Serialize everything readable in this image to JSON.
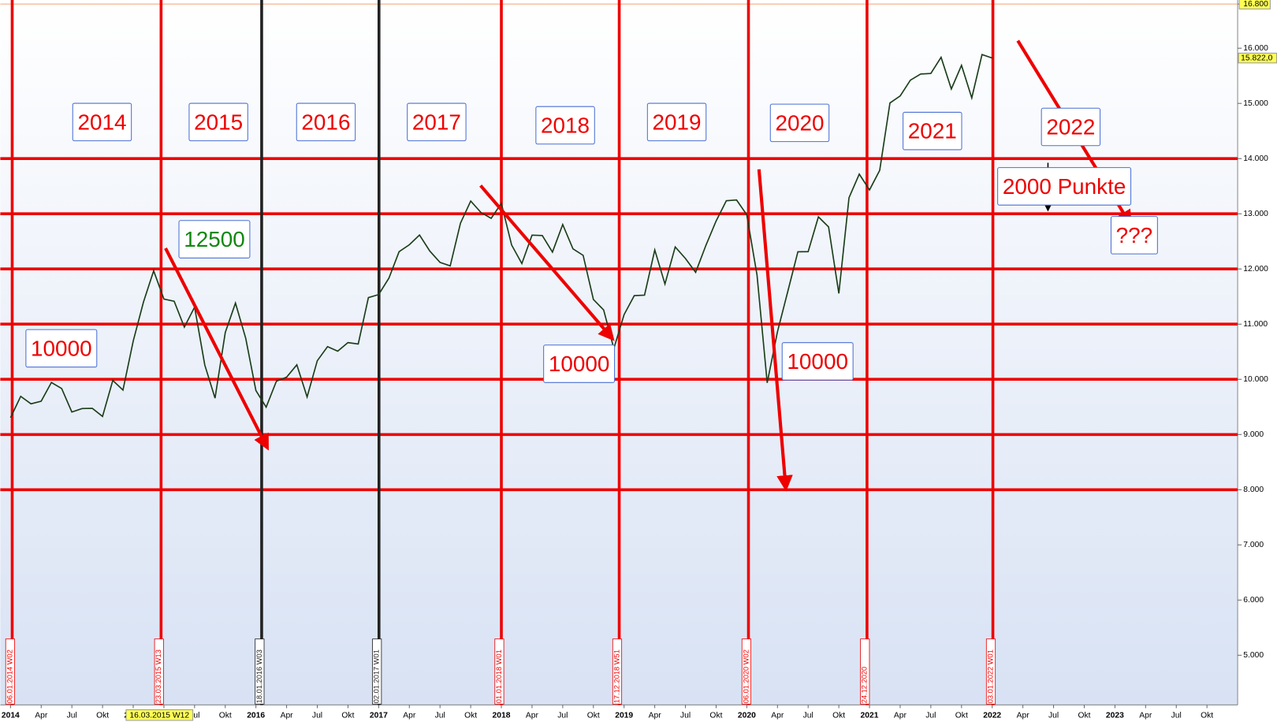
{
  "chart_data": {
    "type": "line",
    "color": "#1a3d1a",
    "x": [
      "2014-01",
      "2014-02",
      "2014-03",
      "2014-04",
      "2014-05",
      "2014-06",
      "2014-07",
      "2014-08",
      "2014-09",
      "2014-10",
      "2014-11",
      "2014-12",
      "2015-01",
      "2015-02",
      "2015-03",
      "2015-04",
      "2015-05",
      "2015-06",
      "2015-07",
      "2015-08",
      "2015-09",
      "2015-10",
      "2015-11",
      "2015-12",
      "2016-01",
      "2016-02",
      "2016-03",
      "2016-04",
      "2016-05",
      "2016-06",
      "2016-07",
      "2016-08",
      "2016-09",
      "2016-10",
      "2016-11",
      "2016-12",
      "2017-01",
      "2017-02",
      "2017-03",
      "2017-04",
      "2017-05",
      "2017-06",
      "2017-07",
      "2017-08",
      "2017-09",
      "2017-10",
      "2017-11",
      "2017-12",
      "2018-01",
      "2018-02",
      "2018-03",
      "2018-04",
      "2018-05",
      "2018-06",
      "2018-07",
      "2018-08",
      "2018-09",
      "2018-10",
      "2018-11",
      "2018-12",
      "2019-01",
      "2019-02",
      "2019-03",
      "2019-04",
      "2019-05",
      "2019-06",
      "2019-07",
      "2019-08",
      "2019-09",
      "2019-10",
      "2019-11",
      "2019-12",
      "2020-01",
      "2020-02",
      "2020-03",
      "2020-04",
      "2020-05",
      "2020-06",
      "2020-07",
      "2020-08",
      "2020-09",
      "2020-10",
      "2020-11",
      "2020-12",
      "2021-01",
      "2021-02",
      "2021-03",
      "2021-04",
      "2021-05",
      "2021-06",
      "2021-07",
      "2021-08",
      "2021-09",
      "2021-10",
      "2021-11",
      "2021-12",
      "2022-01"
    ],
    "values": [
      9306,
      9692,
      9556,
      9603,
      9943,
      9833,
      9407,
      9470,
      9474,
      9327,
      9980,
      9806,
      10694,
      11402,
      11966,
      11454,
      11414,
      10945,
      11309,
      10259,
      9660,
      10850,
      11382,
      10743,
      9798,
      9495,
      9966,
      10039,
      10263,
      9680,
      10337,
      10593,
      10511,
      10665,
      10640,
      11481,
      11535,
      11834,
      12313,
      12438,
      12615,
      12325,
      12118,
      12056,
      12829,
      13230,
      13024,
      12918,
      13189,
      12436,
      12097,
      12612,
      12605,
      12306,
      12806,
      12364,
      12247,
      11447,
      11257,
      10559,
      11173,
      11516,
      11526,
      12344,
      11727,
      12399,
      12189,
      11939,
      12428,
      12867,
      13236,
      13249,
      12982,
      11890,
      9936,
      10862,
      11587,
      12311,
      12313,
      12945,
      12761,
      11556,
      13291,
      13719,
      13433,
      13786,
      15008,
      15136,
      15421,
      15531,
      15544,
      15835,
      15261,
      15689,
      15100,
      15885,
      15822
    ],
    "price_label": "15.822,0",
    "xlim": [
      "2013-12",
      "2024-01"
    ],
    "ylim": [
      4100,
      16800
    ],
    "yticks": [
      {
        "value": 5000,
        "label": "5.000"
      },
      {
        "value": 6000,
        "label": "6.000"
      },
      {
        "value": 7000,
        "label": "7.000"
      },
      {
        "value": 8000,
        "label": "8.000"
      },
      {
        "value": 9000,
        "label": "9.000"
      },
      {
        "value": 10000,
        "label": "10.000"
      },
      {
        "value": 11000,
        "label": "11.000"
      },
      {
        "value": 12000,
        "label": "12.000"
      },
      {
        "value": 13000,
        "label": "13.000"
      },
      {
        "value": 14000,
        "label": "14.000"
      },
      {
        "value": 15000,
        "label": "15.000"
      },
      {
        "value": 16000,
        "label": "16.000"
      },
      {
        "value": 16800,
        "label": "16.800"
      }
    ],
    "xticks": [
      {
        "value": "2014-01",
        "label": "2014"
      },
      {
        "value": "2014-04",
        "label": "Apr"
      },
      {
        "value": "2014-07",
        "label": "Jul"
      },
      {
        "value": "2014-10",
        "label": "Okt"
      },
      {
        "value": "2015-01",
        "label": "2015"
      },
      {
        "value": "2015-04",
        "label": "Apr"
      },
      {
        "value": "2015-07",
        "label": "Jul"
      },
      {
        "value": "2015-10",
        "label": "Okt"
      },
      {
        "value": "2016-01",
        "label": "2016"
      },
      {
        "value": "2016-04",
        "label": "Apr"
      },
      {
        "value": "2016-07",
        "label": "Jul"
      },
      {
        "value": "2016-10",
        "label": "Okt"
      },
      {
        "value": "2017-01",
        "label": "2017"
      },
      {
        "value": "2017-04",
        "label": "Apr"
      },
      {
        "value": "2017-07",
        "label": "Jul"
      },
      {
        "value": "2017-10",
        "label": "Okt"
      },
      {
        "value": "2018-01",
        "label": "2018"
      },
      {
        "value": "2018-04",
        "label": "Apr"
      },
      {
        "value": "2018-07",
        "label": "Jul"
      },
      {
        "value": "2018-10",
        "label": "Okt"
      },
      {
        "value": "2019-01",
        "label": "2019"
      },
      {
        "value": "2019-04",
        "label": "Apr"
      },
      {
        "value": "2019-07",
        "label": "Jul"
      },
      {
        "value": "2019-10",
        "label": "Okt"
      },
      {
        "value": "2020-01",
        "label": "2020"
      },
      {
        "value": "2020-04",
        "label": "Apr"
      },
      {
        "value": "2020-07",
        "label": "Jul"
      },
      {
        "value": "2020-10",
        "label": "Okt"
      },
      {
        "value": "2021-01",
        "label": "2021"
      },
      {
        "value": "2021-04",
        "label": "Apr"
      },
      {
        "value": "2021-07",
        "label": "Jul"
      },
      {
        "value": "2021-10",
        "label": "Okt"
      },
      {
        "value": "2022-01",
        "label": "2022"
      },
      {
        "value": "2022-04",
        "label": "Apr"
      },
      {
        "value": "2022-07",
        "label": "Jul"
      },
      {
        "value": "2022-10",
        "label": "Okt"
      },
      {
        "value": "2023-01",
        "label": "2023"
      },
      {
        "value": "2023-04",
        "label": "Apr"
      },
      {
        "value": "2023-07",
        "label": "Jul"
      },
      {
        "value": "2023-10",
        "label": "Okt"
      }
    ],
    "levels": [
      8000,
      9000,
      10000,
      11000,
      12000,
      13000,
      14000
    ],
    "level_color": "#ee0000",
    "vertical_markers": [
      {
        "x": "2014-01-06",
        "label": "06.01.2014 W02",
        "color": "#ee0000"
      },
      {
        "x": "2015-03-23",
        "label": "23.03.2015 W13",
        "color": "#ee0000"
      },
      {
        "x": "2016-01-18",
        "label": "18.01.2016 W03",
        "color": "#222222"
      },
      {
        "x": "2017-01-02",
        "label": "02.01.2017 W01",
        "color": "#222222"
      },
      {
        "x": "2018-01-01",
        "label": "01.01.2018 W01",
        "color": "#ee0000"
      },
      {
        "x": "2018-12-17",
        "label": "17.12.2018 W51",
        "color": "#ee0000"
      },
      {
        "x": "2020-01-06",
        "label": "06.01.2020 W02",
        "color": "#ee0000"
      },
      {
        "x": "2020-12-24",
        "label": "24.12.2020",
        "color": "#ee0000"
      },
      {
        "x": "2022-01-03",
        "label": "03.01.2022 W01",
        "color": "#ee0000"
      }
    ],
    "cursor_label": "16.03.2015 W12",
    "annotations": [
      {
        "text": "2014",
        "color": "#ee0000"
      },
      {
        "text": "2015",
        "color": "#ee0000"
      },
      {
        "text": "2016",
        "color": "#ee0000"
      },
      {
        "text": "2017",
        "color": "#ee0000"
      },
      {
        "text": "2018",
        "color": "#ee0000"
      },
      {
        "text": "2019",
        "color": "#ee0000"
      },
      {
        "text": "2020",
        "color": "#ee0000"
      },
      {
        "text": "2021",
        "color": "#ee0000"
      },
      {
        "text": "2022",
        "color": "#ee0000"
      },
      {
        "text": "12500",
        "color": "#118811"
      },
      {
        "text": "10000",
        "color": "#ee0000"
      },
      {
        "text": "10000",
        "color": "#ee0000"
      },
      {
        "text": "10000",
        "color": "#ee0000"
      },
      {
        "text": "2000 Punkte",
        "color": "#ee0000"
      },
      {
        "text": "???",
        "color": "#ee0000"
      }
    ]
  }
}
